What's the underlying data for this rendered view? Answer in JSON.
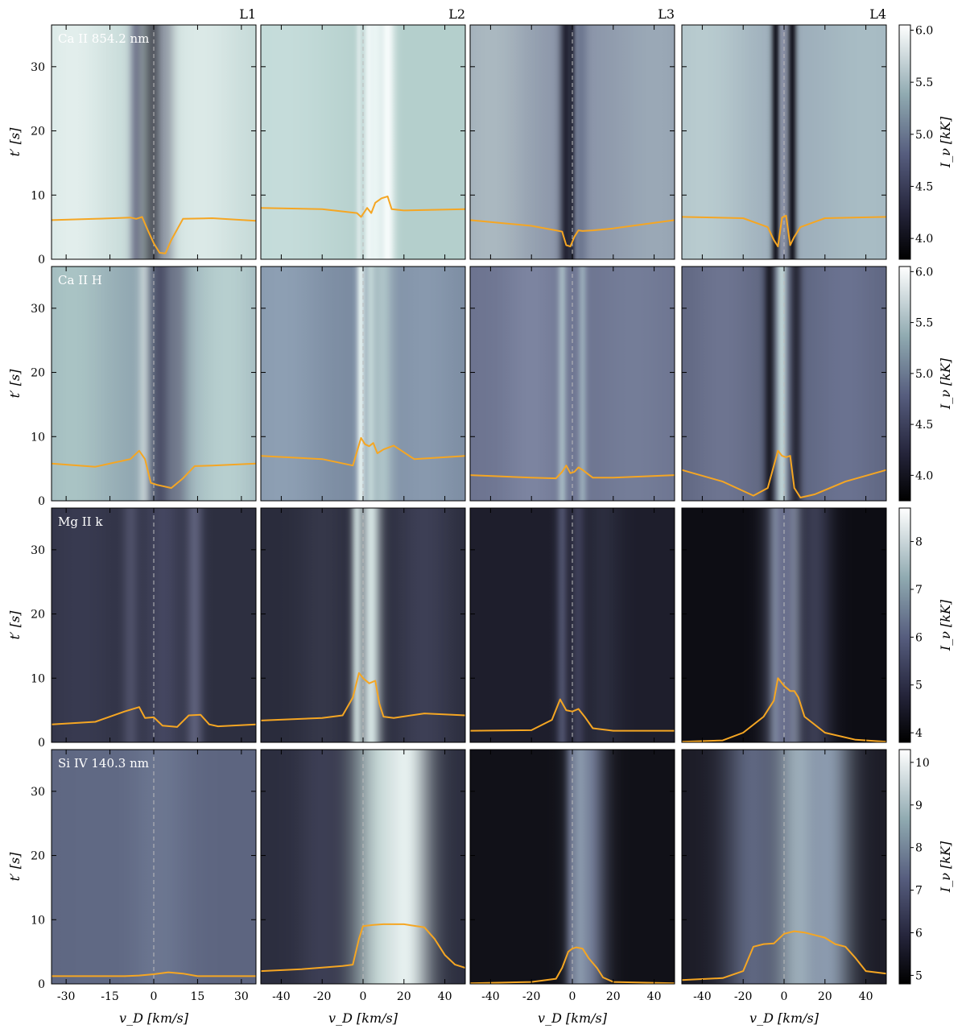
{
  "chart_data": {
    "type": "heatmap",
    "columns": [
      "L1",
      "L2",
      "L3",
      "L4"
    ],
    "rows": [
      {
        "label": "Ca II 854.2 nm",
        "colorbar": {
          "label": "I_ν [kK]",
          "range": [
            3.8,
            6.05
          ],
          "ticks": [
            4.0,
            4.5,
            5.0,
            5.5,
            6.0
          ],
          "tick_labels": [
            "4.0",
            "4.5",
            "5.0",
            "5.5",
            "6.0"
          ]
        },
        "profiles": [
          {
            "x": [
              -35,
              -20,
              -8,
              -6,
              -4,
              -2,
              0,
              2,
              4,
              6,
              10,
              20,
              35
            ],
            "y": [
              6.1,
              6.3,
              6.5,
              6.3,
              6.6,
              4.5,
              2.5,
              1.0,
              0.9,
              3.0,
              6.3,
              6.4,
              6.0
            ]
          },
          {
            "x": [
              -50,
              -20,
              -3,
              -1,
              2,
              4,
              6,
              9,
              12,
              14,
              20,
              50
            ],
            "y": [
              8.0,
              7.8,
              7.2,
              6.6,
              8.0,
              7.2,
              8.8,
              9.5,
              9.8,
              7.8,
              7.6,
              7.8
            ]
          },
          {
            "x": [
              -50,
              -20,
              -8,
              -5,
              -3,
              -1,
              1,
              3,
              5,
              10,
              20,
              50
            ],
            "y": [
              6.1,
              5.2,
              4.5,
              4.3,
              2.2,
              2.0,
              3.5,
              4.5,
              4.4,
              4.5,
              4.8,
              6.1
            ]
          },
          {
            "x": [
              -50,
              -20,
              -8,
              -5,
              -3,
              -1,
              1,
              3,
              5,
              8,
              20,
              50
            ],
            "y": [
              6.6,
              6.4,
              5.0,
              3.0,
              2.0,
              6.5,
              6.8,
              2.2,
              3.5,
              5.0,
              6.4,
              6.6
            ]
          }
        ]
      },
      {
        "label": "Ca II H",
        "colorbar": {
          "label": "I_ν [kK]",
          "range": [
            3.75,
            6.05
          ],
          "ticks": [
            4.0,
            4.5,
            5.0,
            5.5,
            6.0
          ],
          "tick_labels": [
            "4.0",
            "4.5",
            "5.0",
            "5.5",
            "6.0"
          ]
        },
        "profiles": [
          {
            "x": [
              -35,
              -20,
              -8,
              -5,
              -3,
              -1,
              1,
              3,
              6,
              10,
              14,
              20,
              35
            ],
            "y": [
              5.8,
              5.3,
              6.5,
              7.8,
              6.5,
              2.8,
              2.5,
              2.3,
              2.0,
              3.5,
              5.4,
              5.5,
              5.8
            ]
          },
          {
            "x": [
              -50,
              -20,
              -5,
              -1,
              1,
              3,
              5,
              7,
              10,
              15,
              25,
              50
            ],
            "y": [
              7.0,
              6.5,
              5.5,
              9.8,
              8.8,
              8.5,
              9.0,
              7.4,
              8.0,
              8.6,
              6.5,
              7.0
            ]
          },
          {
            "x": [
              -50,
              -20,
              -8,
              -5,
              -3,
              -1,
              1,
              3,
              5,
              10,
              20,
              50
            ],
            "y": [
              4.0,
              3.6,
              3.5,
              4.5,
              5.5,
              4.3,
              4.5,
              5.2,
              4.8,
              3.6,
              3.6,
              4.0
            ]
          },
          {
            "x": [
              -50,
              -30,
              -15,
              -8,
              -3,
              -1,
              1,
              3,
              5,
              8,
              15,
              30,
              50
            ],
            "y": [
              4.8,
              3.0,
              0.8,
              2.0,
              7.8,
              7.0,
              6.8,
              7.0,
              2.0,
              0.5,
              1.0,
              3.0,
              4.8
            ]
          }
        ]
      },
      {
        "label": "Mg II k",
        "colorbar": {
          "label": "I_ν [kK]",
          "range": [
            3.8,
            8.7
          ],
          "ticks": [
            4,
            5,
            6,
            7,
            8
          ],
          "tick_labels": [
            "4",
            "5",
            "6",
            "7",
            "8"
          ]
        },
        "profiles": [
          {
            "x": [
              -35,
              -20,
              -10,
              -5,
              -3,
              0,
              3,
              8,
              12,
              16,
              19,
              22,
              35
            ],
            "y": [
              2.8,
              3.2,
              4.8,
              5.5,
              3.8,
              3.9,
              2.6,
              2.4,
              4.2,
              4.3,
              2.8,
              2.5,
              2.8
            ]
          },
          {
            "x": [
              -50,
              -20,
              -10,
              -5,
              -2,
              0,
              3,
              6,
              8,
              10,
              15,
              30,
              50
            ],
            "y": [
              3.4,
              3.8,
              4.2,
              7.0,
              10.8,
              10.0,
              9.2,
              9.6,
              6.0,
              4.0,
              3.8,
              4.5,
              4.2
            ]
          },
          {
            "x": [
              -50,
              -20,
              -10,
              -6,
              -3,
              0,
              3,
              6,
              10,
              20,
              50
            ],
            "y": [
              1.8,
              1.9,
              3.5,
              6.7,
              5.0,
              4.8,
              5.2,
              4.0,
              2.2,
              1.8,
              1.8
            ]
          },
          {
            "x": [
              -50,
              -30,
              -20,
              -10,
              -5,
              -3,
              0,
              3,
              5,
              7,
              10,
              20,
              35,
              50
            ],
            "y": [
              0.1,
              0.3,
              1.5,
              4.0,
              6.5,
              10.0,
              8.8,
              8.0,
              8.0,
              7.0,
              4.0,
              1.5,
              0.4,
              0.1
            ]
          }
        ]
      },
      {
        "label": "Si IV 140.3 nm",
        "colorbar": {
          "label": "I_ν [kK]",
          "range": [
            4.8,
            10.3
          ],
          "ticks": [
            5,
            6,
            7,
            8,
            9,
            10
          ],
          "tick_labels": [
            "5",
            "6",
            "7",
            "8",
            "9",
            "10"
          ]
        },
        "profiles": [
          {
            "x": [
              -35,
              -20,
              -10,
              -5,
              0,
              5,
              10,
              15,
              20,
              35
            ],
            "y": [
              1.2,
              1.2,
              1.2,
              1.3,
              1.5,
              1.8,
              1.6,
              1.2,
              1.2,
              1.2
            ]
          },
          {
            "x": [
              -50,
              -30,
              -10,
              -5,
              -2,
              0,
              5,
              10,
              20,
              30,
              35,
              40,
              45,
              50
            ],
            "y": [
              2.0,
              2.3,
              2.8,
              3.0,
              7.0,
              9.0,
              9.2,
              9.3,
              9.3,
              8.8,
              7.0,
              4.5,
              3.0,
              2.5
            ]
          },
          {
            "x": [
              -50,
              -20,
              -8,
              -5,
              -2,
              0,
              2,
              5,
              8,
              12,
              15,
              20,
              50
            ],
            "y": [
              0.1,
              0.3,
              0.8,
              2.5,
              5.0,
              5.5,
              5.7,
              5.5,
              4.0,
              2.5,
              1.0,
              0.3,
              0.1
            ]
          },
          {
            "x": [
              -50,
              -30,
              -20,
              -15,
              -10,
              -5,
              0,
              5,
              10,
              20,
              25,
              30,
              35,
              40,
              50
            ],
            "y": [
              0.6,
              0.9,
              2.0,
              5.8,
              6.2,
              6.3,
              7.8,
              8.2,
              8.0,
              7.2,
              6.2,
              5.8,
              4.0,
              2.0,
              1.6
            ]
          }
        ]
      }
    ],
    "x_axes": [
      {
        "range": [
          -35,
          35
        ],
        "ticks": [
          -30,
          -15,
          0,
          15,
          30
        ],
        "tick_labels": [
          "-30",
          "-15",
          "0",
          "15",
          "30"
        ]
      },
      {
        "range": [
          -50,
          50
        ],
        "ticks": [
          -40,
          -20,
          0,
          20,
          40
        ],
        "tick_labels": [
          "-40",
          "-20",
          "0",
          "20",
          "40"
        ]
      },
      {
        "range": [
          -50,
          50
        ],
        "ticks": [
          -40,
          -20,
          0,
          20,
          40
        ],
        "tick_labels": [
          "-40",
          "-20",
          "0",
          "20",
          "40"
        ]
      },
      {
        "range": [
          -50,
          50
        ],
        "ticks": [
          -40,
          -20,
          0,
          20,
          40
        ],
        "tick_labels": [
          "-40",
          "-20",
          "0",
          "20",
          "40"
        ]
      }
    ],
    "xlabel": "v_D [km/s]",
    "ylabel": "t′ [s]",
    "y_axis": {
      "range": [
        0,
        36.5
      ],
      "ticks": [
        0,
        10,
        20,
        30
      ],
      "tick_labels": [
        "0",
        "10",
        "20",
        "30"
      ]
    },
    "line_zero": 0,
    "colormap": "bone",
    "profile_color": "#f5a623",
    "zero_line_color": "#bbbbbb"
  }
}
